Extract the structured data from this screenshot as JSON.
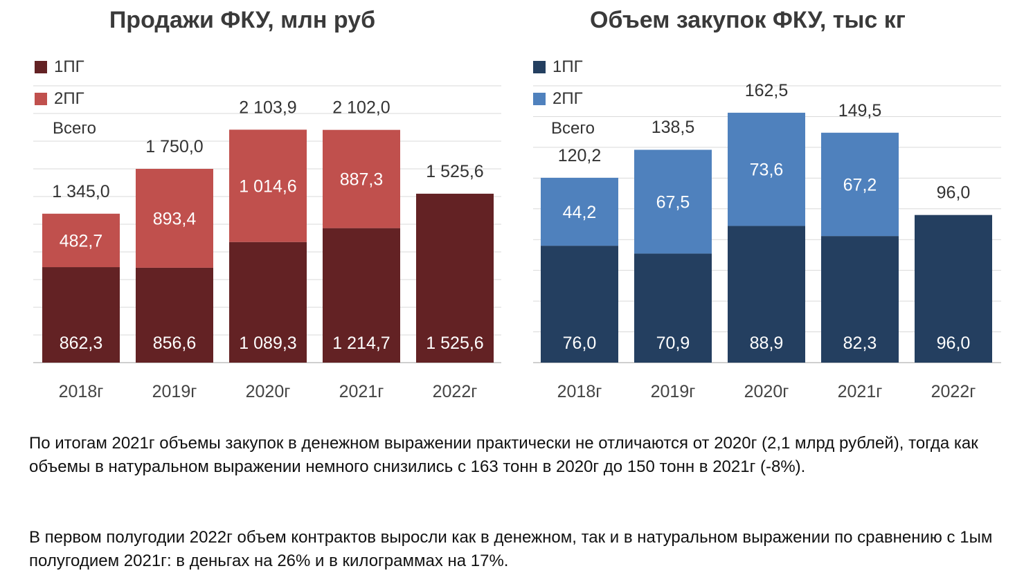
{
  "chart_data": [
    {
      "type": "bar",
      "stacked": true,
      "title": "Продажи ФКУ, млн руб",
      "categories": [
        "2018г",
        "2019г",
        "2020г",
        "2021г",
        "2022г"
      ],
      "series": [
        {
          "name": "1ПГ",
          "values": [
            862.3,
            856.6,
            1089.3,
            1214.7,
            1525.6
          ],
          "labels": [
            "862,3",
            "856,6",
            "1 089,3",
            "1 214,7",
            "1 525,6"
          ]
        },
        {
          "name": "2ПГ",
          "values": [
            482.7,
            893.4,
            1014.6,
            887.3,
            0
          ],
          "labels": [
            "482,7",
            "893,4",
            "1 014,6",
            "887,3",
            ""
          ]
        }
      ],
      "totals": [
        1345.0,
        1750.0,
        2103.9,
        2102.0,
        1525.6
      ],
      "total_labels": [
        "1 345,0",
        "1 750,0",
        "2 103,9",
        "2 102,0",
        "1 525,6"
      ],
      "total_series_name": "Всего",
      "colors": {
        "s1": "#632224",
        "s2": "#c0504d"
      },
      "ylim": [
        0,
        2500
      ],
      "grid": true,
      "legend": "top-left"
    },
    {
      "type": "bar",
      "stacked": true,
      "title": "Объем закупок ФКУ, тыс кг",
      "categories": [
        "2018г",
        "2019г",
        "2020г",
        "2021г",
        "2022г"
      ],
      "series": [
        {
          "name": "1ПГ",
          "values": [
            76.0,
            70.9,
            88.9,
            82.3,
            96.0
          ],
          "labels": [
            "76,0",
            "70,9",
            "88,9",
            "82,3",
            "96,0"
          ]
        },
        {
          "name": "2ПГ",
          "values": [
            44.2,
            67.5,
            73.6,
            67.2,
            0
          ],
          "labels": [
            "44,2",
            "67,5",
            "73,6",
            "67,2",
            ""
          ]
        }
      ],
      "totals": [
        120.2,
        138.5,
        162.5,
        149.5,
        96.0
      ],
      "total_labels": [
        "120,2",
        "138,5",
        "162,5",
        "149,5",
        "96,0"
      ],
      "total_series_name": "Всего",
      "colors": {
        "s1": "#243f60",
        "s2": "#4f81bd"
      },
      "ylim": [
        0,
        180
      ],
      "grid": true,
      "legend": "top-left"
    }
  ],
  "text": {
    "para1": "По итогам 2021г объемы закупок в денежном выражении практически не отличаются от 2020г (2,1 млрд рублей), тогда как объемы в натуральном выражении немного снизились с 163 тонн в 2020г до 150 тонн в 2021г (-8%).",
    "para2": "В первом полугодии 2022г объем контрактов выросли как в денежном, так и в натуральном выражении по сравнению с 1ым полугодием 2021г: в деньгах на 26% и в килограммах на 17%."
  }
}
